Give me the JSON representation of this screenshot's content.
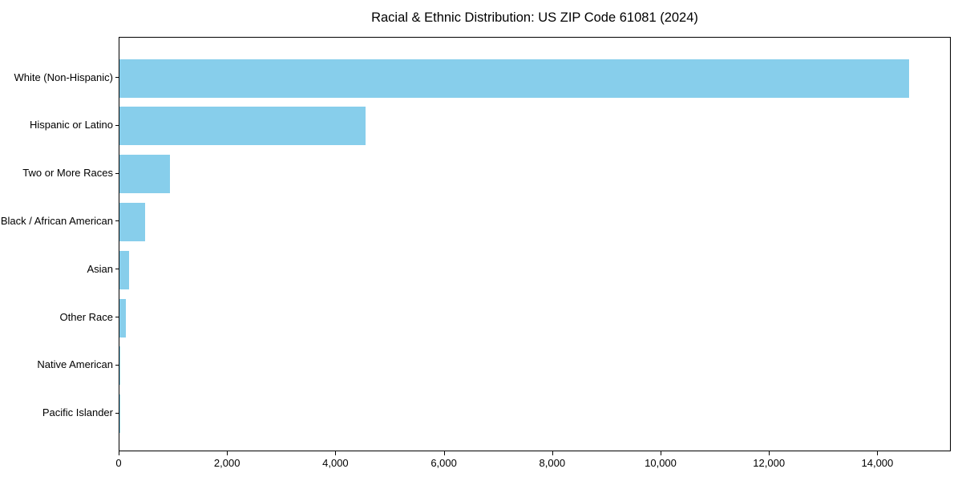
{
  "chart_data": {
    "type": "bar",
    "orientation": "horizontal",
    "title": "Racial & Ethnic Distribution: US ZIP Code 61081 (2024)",
    "xlabel": "",
    "ylabel": "",
    "categories": [
      "White (Non-Hispanic)",
      "Hispanic or Latino",
      "Two or More Races",
      "Black / African American",
      "Asian",
      "Other Race",
      "Native American",
      "Pacific Islander"
    ],
    "values": [
      14600,
      4550,
      930,
      480,
      180,
      115,
      10,
      5
    ],
    "bar_color": "#87CEEB",
    "axis_color": "#000000",
    "background_color": "#ffffff",
    "grid": false,
    "legend": "none",
    "xlim": [
      0,
      15355
    ],
    "x_ticks": [
      {
        "value": 0,
        "label": "0"
      },
      {
        "value": 2000,
        "label": "2,000"
      },
      {
        "value": 4000,
        "label": "4,000"
      },
      {
        "value": 6000,
        "label": "6,000"
      },
      {
        "value": 8000,
        "label": "8,000"
      },
      {
        "value": 10000,
        "label": "10,000"
      },
      {
        "value": 12000,
        "label": "12,000"
      },
      {
        "value": 14000,
        "label": "14,000"
      }
    ]
  }
}
